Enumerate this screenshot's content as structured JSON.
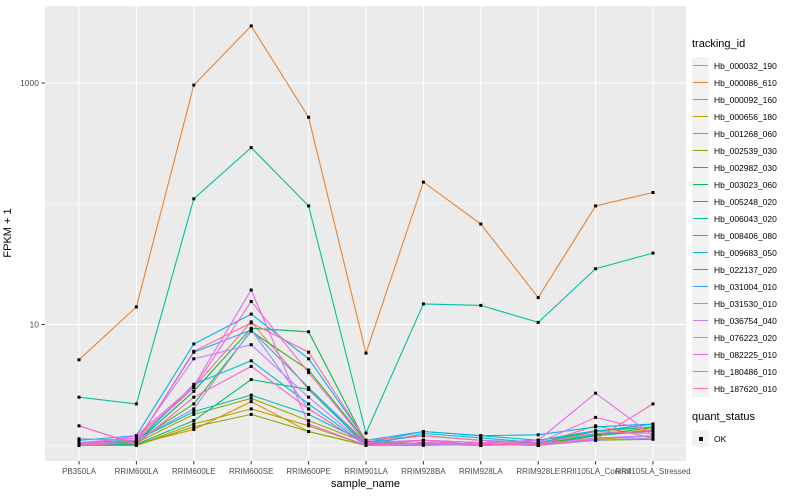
{
  "chart_data": {
    "type": "line",
    "title": "",
    "xlabel": "sample_name",
    "ylabel": "FPKM + 1",
    "y_scale": "log10",
    "y_axis_ticks": [
      10,
      1000
    ],
    "y_axis_tick_labels": [
      "10",
      "1000"
    ],
    "y_minor_gridlines": [
      1,
      100
    ],
    "grid": true,
    "panel_bg_color": "#EBEBEB",
    "grid_color": "#FFFFFF",
    "tick_label_color": "#4D4D4D",
    "point_color": "#000000",
    "point_shape": "square",
    "legend_position": "right",
    "legend_title": "tracking_id",
    "quant_legend": {
      "title": "quant_status",
      "items": [
        "OK"
      ]
    },
    "categories": [
      "PB350LA",
      "RRIM600LA",
      "RRIM600LE",
      "RRIM600SE",
      "RRIM600PE",
      "RRIM901LA",
      "RRIM928BA",
      "RRIM928LA",
      "RRIM928LE",
      "RRII105LA_Control",
      "RRII105LA_Stressed"
    ],
    "series": [
      {
        "name": "Hb_000032_190",
        "color": "#F8766D",
        "values": [
          1.02,
          1.1,
          3.0,
          10.5,
          2.9,
          1.02,
          1.1,
          1.05,
          1.02,
          1.45,
          1.15
        ]
      },
      {
        "name": "Hb_000086_610",
        "color": "#EA8331",
        "values": [
          5.1,
          14.0,
          960,
          2970,
          520,
          5.8,
          151,
          68,
          16.7,
          96,
          124
        ]
      },
      {
        "name": "Hb_000092_160",
        "color": "#D89000",
        "values": [
          1.0,
          1.02,
          1.35,
          2.3,
          1.3,
          1.0,
          1.02,
          1.0,
          1.02,
          1.2,
          1.35
        ]
      },
      {
        "name": "Hb_000656_180",
        "color": "#C09B00",
        "values": [
          1.02,
          1.0,
          1.5,
          2.0,
          1.45,
          1.0,
          1.05,
          1.02,
          1.0,
          1.12,
          1.2
        ]
      },
      {
        "name": "Hb_001268_060",
        "color": "#A3A500",
        "values": [
          1.0,
          1.05,
          1.8,
          2.45,
          1.6,
          1.05,
          1.02,
          1.0,
          1.05,
          1.3,
          1.42
        ]
      },
      {
        "name": "Hb_002539_030",
        "color": "#7CAE00",
        "values": [
          1.0,
          1.0,
          1.42,
          1.8,
          1.3,
          1.0,
          1.0,
          1.02,
          1.0,
          1.1,
          1.12
        ]
      },
      {
        "name": "Hb_002982_030",
        "color": "#39B600",
        "values": [
          1.0,
          1.08,
          2.2,
          8.8,
          4.2,
          1.08,
          1.02,
          1.0,
          1.02,
          1.22,
          1.4
        ]
      },
      {
        "name": "Hb_003023_060",
        "color": "#00BB4E",
        "values": [
          1.02,
          1.05,
          2.8,
          9.3,
          8.7,
          1.05,
          1.1,
          1.05,
          1.1,
          1.3,
          1.5
        ]
      },
      {
        "name": "Hb_005248_020",
        "color": "#00BF7D",
        "values": [
          1.0,
          1.02,
          1.6,
          3.5,
          2.9,
          1.0,
          1.05,
          1.02,
          1.0,
          1.2,
          1.32
        ]
      },
      {
        "name": "Hb_006043_020",
        "color": "#00C1A3",
        "values": [
          2.5,
          2.2,
          110,
          292,
          96,
          1.26,
          14.8,
          14.4,
          10.4,
          29,
          39
        ]
      },
      {
        "name": "Hb_008406_080",
        "color": "#00BFC4",
        "values": [
          1.05,
          1.1,
          1.9,
          2.6,
          1.8,
          1.05,
          1.3,
          1.2,
          1.1,
          1.32,
          1.42
        ]
      },
      {
        "name": "Hb_009683_050",
        "color": "#00BAE0",
        "values": [
          1.0,
          1.05,
          3.2,
          5.0,
          2.2,
          1.0,
          1.25,
          1.15,
          1.05,
          1.3,
          1.5
        ]
      },
      {
        "name": "Hb_022137_020",
        "color": "#00B0F6",
        "values": [
          1.1,
          1.2,
          6.9,
          12.2,
          5.2,
          1.1,
          1.3,
          1.2,
          1.22,
          1.42,
          1.5
        ]
      },
      {
        "name": "Hb_031004_010",
        "color": "#35A2FF",
        "values": [
          1.0,
          1.05,
          5.9,
          9.0,
          3.0,
          1.05,
          1.2,
          1.1,
          1.05,
          1.25,
          1.3
        ]
      },
      {
        "name": "Hb_031530_010",
        "color": "#9590FF",
        "values": [
          1.13,
          1.1,
          2.0,
          9.0,
          2.0,
          1.0,
          1.05,
          1.02,
          1.0,
          1.1,
          1.15
        ]
      },
      {
        "name": "Hb_036754_040",
        "color": "#C77CFF",
        "values": [
          1.0,
          1.1,
          5.2,
          6.8,
          2.5,
          1.0,
          1.02,
          1.0,
          1.02,
          1.15,
          1.2
        ]
      },
      {
        "name": "Hb_076223_020",
        "color": "#E76BF3",
        "values": [
          1.0,
          1.2,
          3.1,
          19.3,
          1.5,
          1.0,
          1.1,
          1.05,
          1.1,
          2.7,
          1.2
        ]
      },
      {
        "name": "Hb_082225_010",
        "color": "#FA62DB",
        "values": [
          1.05,
          1.15,
          3.0,
          15.5,
          4.0,
          1.05,
          1.1,
          1.0,
          1.05,
          1.7,
          1.3
        ]
      },
      {
        "name": "Hb_180486_010",
        "color": "#FF62BC",
        "values": [
          1.45,
          1.02,
          2.5,
          4.5,
          2.0,
          1.0,
          1.05,
          1.02,
          1.0,
          1.12,
          2.2
        ]
      },
      {
        "name": "Hb_187620_010",
        "color": "#FF6A98",
        "values": [
          1.0,
          1.05,
          6.0,
          10.3,
          5.9,
          1.1,
          1.2,
          1.1,
          1.02,
          1.3,
          1.25
        ]
      }
    ]
  }
}
